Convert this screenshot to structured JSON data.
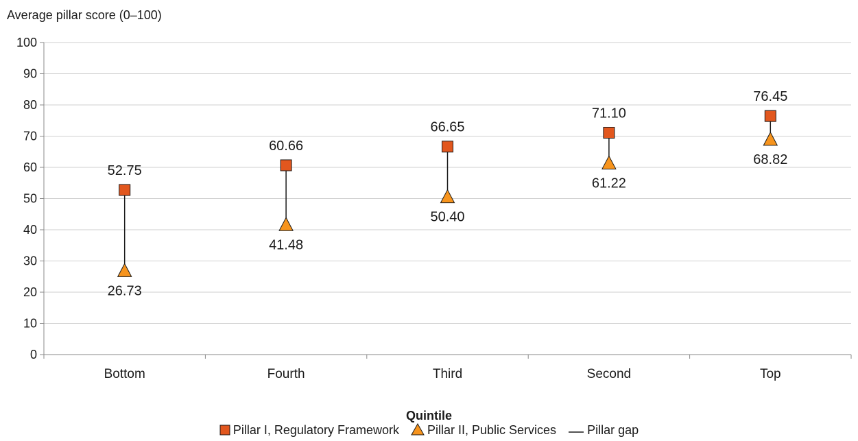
{
  "chart_data": {
    "type": "scatter",
    "ylabel": "Average pillar score (0–100)",
    "xlabel": "Quintile",
    "categories": [
      "Bottom",
      "Fourth",
      "Third",
      "Second",
      "Top"
    ],
    "ylim": [
      0,
      100
    ],
    "yticks": [
      0,
      10,
      20,
      30,
      40,
      50,
      60,
      70,
      80,
      90,
      100
    ],
    "series": [
      {
        "name": "Pillar I, Regulatory Framework",
        "marker": "square",
        "color": "#E2571E",
        "values": [
          52.75,
          60.66,
          66.65,
          71.1,
          76.45
        ],
        "labels": [
          "52.75",
          "60.66",
          "66.65",
          "71.10",
          "76.45"
        ]
      },
      {
        "name": "Pillar II, Public Services",
        "marker": "triangle",
        "color": "#F7941D",
        "values": [
          26.73,
          41.48,
          50.4,
          61.22,
          68.82
        ],
        "labels": [
          "26.73",
          "41.48",
          "50.40",
          "61.22",
          "68.82"
        ]
      }
    ],
    "gap_line": {
      "name": "Pillar gap",
      "color": "#1a1a1a"
    },
    "grid": "horizontal",
    "legend_position": "bottom"
  }
}
